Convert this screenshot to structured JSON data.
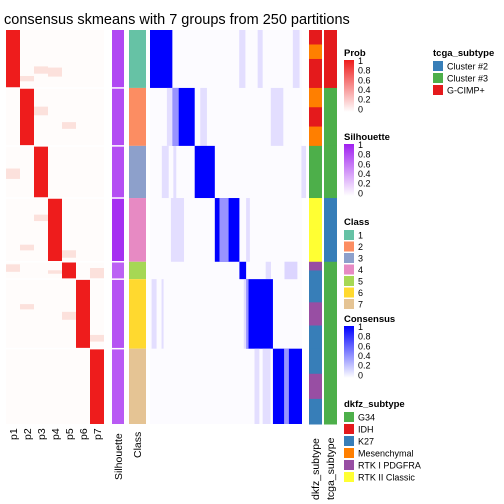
{
  "chart_data": {
    "type": "heatmap",
    "title": "consensus skmeans with 7 groups from 250 partitions",
    "columns": [
      "p1",
      "p2",
      "p3",
      "p4",
      "p5",
      "p6",
      "p7"
    ],
    "silhouette_label": "Silhouette",
    "class_label": "Class",
    "annotation_columns": [
      "dkfz_subtype",
      "tcga_subtype"
    ],
    "class_colors": {
      "1": "#66C2A5",
      "2": "#FC8D62",
      "3": "#8DA0CB",
      "4": "#E78AC3",
      "5": "#A6D854",
      "6": "#FFD92F",
      "7": "#E5C494"
    },
    "groups": [
      {
        "class": "1",
        "n": 10,
        "prob_col": 0,
        "silhouette": 0.72
      },
      {
        "class": "2",
        "n": 10,
        "prob_col": 1,
        "silhouette": 0.7
      },
      {
        "class": "3",
        "n": 9,
        "prob_col": 2,
        "silhouette": 0.68
      },
      {
        "class": "4",
        "n": 11,
        "prob_col": 3,
        "silhouette": 0.9
      },
      {
        "class": "5",
        "n": 3,
        "prob_col": 4,
        "silhouette": 0.55
      },
      {
        "class": "6",
        "n": 12,
        "prob_col": 5,
        "silhouette": 0.65
      },
      {
        "class": "7",
        "n": 13,
        "prob_col": 6,
        "silhouette": 0.6
      }
    ],
    "legends": {
      "prob": {
        "title": "Prob",
        "ticks": [
          "1",
          "0.8",
          "0.6",
          "0.4",
          "0.2",
          "0"
        ],
        "colors": [
          "#FFFFFF",
          "#EE1C1C"
        ]
      },
      "silhouette": {
        "title": "Silhouette",
        "ticks": [
          "1",
          "0.8",
          "0.6",
          "0.4",
          "0.2",
          "0"
        ],
        "colors": [
          "#FFFFFF",
          "#A020F0"
        ]
      },
      "class": {
        "title": "Class",
        "items": [
          "1",
          "2",
          "3",
          "4",
          "5",
          "6",
          "7"
        ]
      },
      "consensus": {
        "title": "Consensus",
        "ticks": [
          "1",
          "0.8",
          "0.6",
          "0.4",
          "0.2",
          "0"
        ],
        "colors": [
          "#FFFFFF",
          "#0000FF"
        ]
      },
      "dkfz_subtype": {
        "title": "dkfz_subtype",
        "items": [
          {
            "label": "G34",
            "color": "#4DAF4A"
          },
          {
            "label": "IDH",
            "color": "#E41A1C"
          },
          {
            "label": "K27",
            "color": "#377EB8"
          },
          {
            "label": "Mesenchymal",
            "color": "#FF7F00"
          },
          {
            "label": "RTK I PDGFRA",
            "color": "#984EA3"
          },
          {
            "label": "RTK II Classic",
            "color": "#FFFF33"
          }
        ]
      },
      "tcga_subtype": {
        "title": "tcga_subtype",
        "items": [
          {
            "label": "Cluster #2",
            "color": "#377EB8"
          },
          {
            "label": "Cluster #3",
            "color": "#4DAF4A"
          },
          {
            "label": "G-CIMP+",
            "color": "#E41A1C"
          }
        ]
      }
    }
  }
}
